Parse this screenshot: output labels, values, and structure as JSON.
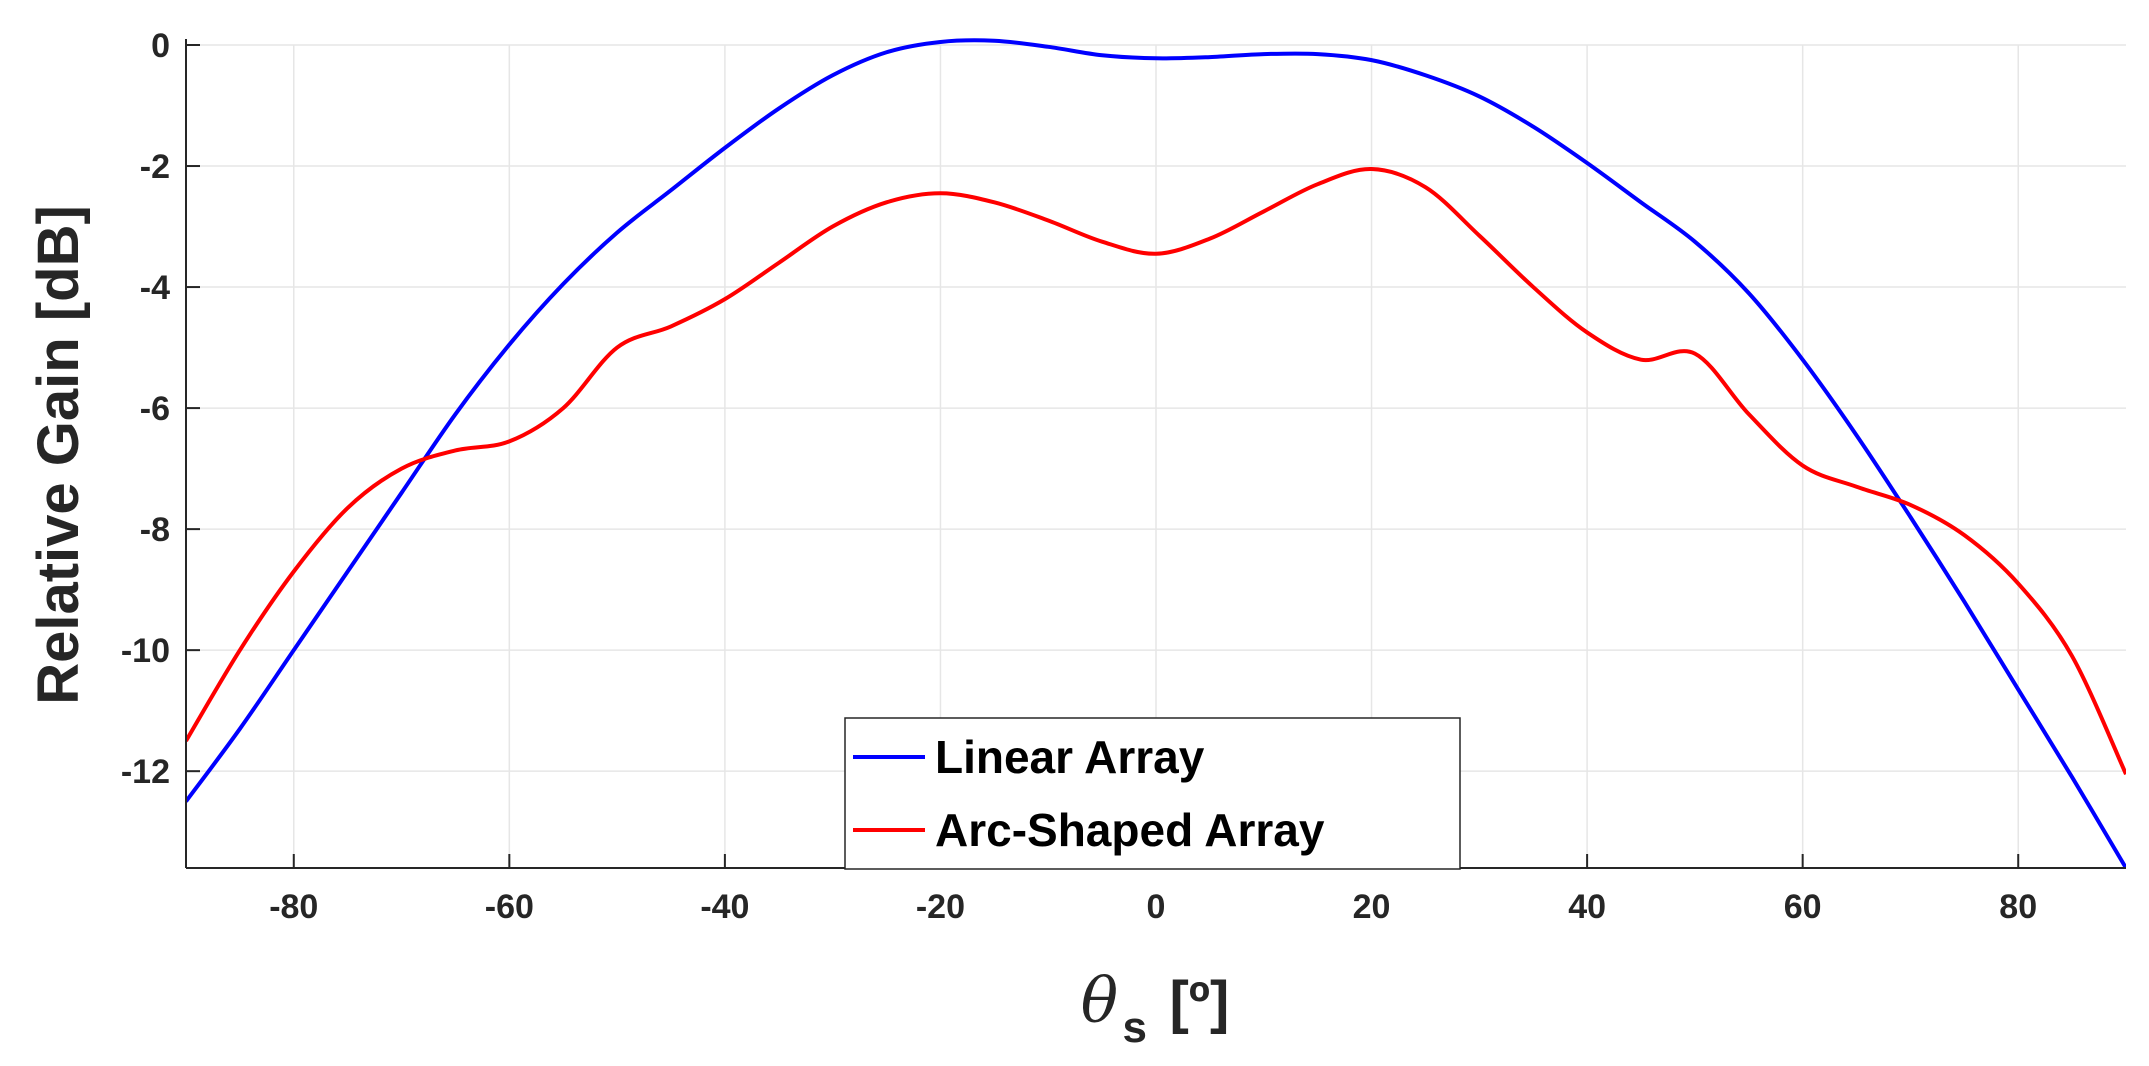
{
  "chart_data": {
    "type": "line",
    "xlabel": {
      "symbol": "θ",
      "subscript": "s",
      "unit": "[º]"
    },
    "ylabel": "Relative Gain [dB]",
    "xlim": [
      -90,
      90
    ],
    "ylim": [
      -13.6,
      0
    ],
    "xticks": [
      -80,
      -60,
      -40,
      -20,
      0,
      20,
      40,
      60,
      80
    ],
    "yticks": [
      0,
      -2,
      -4,
      -6,
      -8,
      -10,
      -12
    ],
    "grid": true,
    "legend_position": "bottom-center",
    "x": [
      -90,
      -85,
      -80,
      -75,
      -70,
      -65,
      -60,
      -55,
      -50,
      -45,
      -40,
      -35,
      -30,
      -25,
      -20,
      -15,
      -10,
      -5,
      0,
      5,
      10,
      15,
      20,
      25,
      30,
      35,
      40,
      45,
      50,
      55,
      60,
      65,
      70,
      75,
      80,
      85,
      90
    ],
    "series": [
      {
        "name": "Linear Array",
        "color": "#0000ff",
        "values": [
          -12.5,
          -11.3,
          -10.0,
          -8.7,
          -7.4,
          -6.1,
          -4.95,
          -3.95,
          -3.1,
          -2.4,
          -1.7,
          -1.05,
          -0.5,
          -0.12,
          0.05,
          0.07,
          -0.03,
          -0.17,
          -0.22,
          -0.2,
          -0.15,
          -0.15,
          -0.25,
          -0.5,
          -0.85,
          -1.35,
          -1.95,
          -2.6,
          -3.25,
          -4.1,
          -5.2,
          -6.45,
          -7.8,
          -9.2,
          -10.65,
          -12.1,
          -13.6
        ]
      },
      {
        "name": "Arc-Shaped Array",
        "color": "#ff0000",
        "values": [
          -11.5,
          -10.0,
          -8.7,
          -7.65,
          -7.0,
          -6.7,
          -6.55,
          -6.0,
          -5.0,
          -4.65,
          -4.2,
          -3.6,
          -3.0,
          -2.6,
          -2.45,
          -2.6,
          -2.9,
          -3.25,
          -3.45,
          -3.2,
          -2.75,
          -2.3,
          -2.05,
          -2.35,
          -3.15,
          -4.0,
          -4.75,
          -5.2,
          -5.1,
          -6.1,
          -6.95,
          -7.3,
          -7.6,
          -8.1,
          -8.9,
          -10.1,
          -12.05
        ]
      }
    ]
  }
}
